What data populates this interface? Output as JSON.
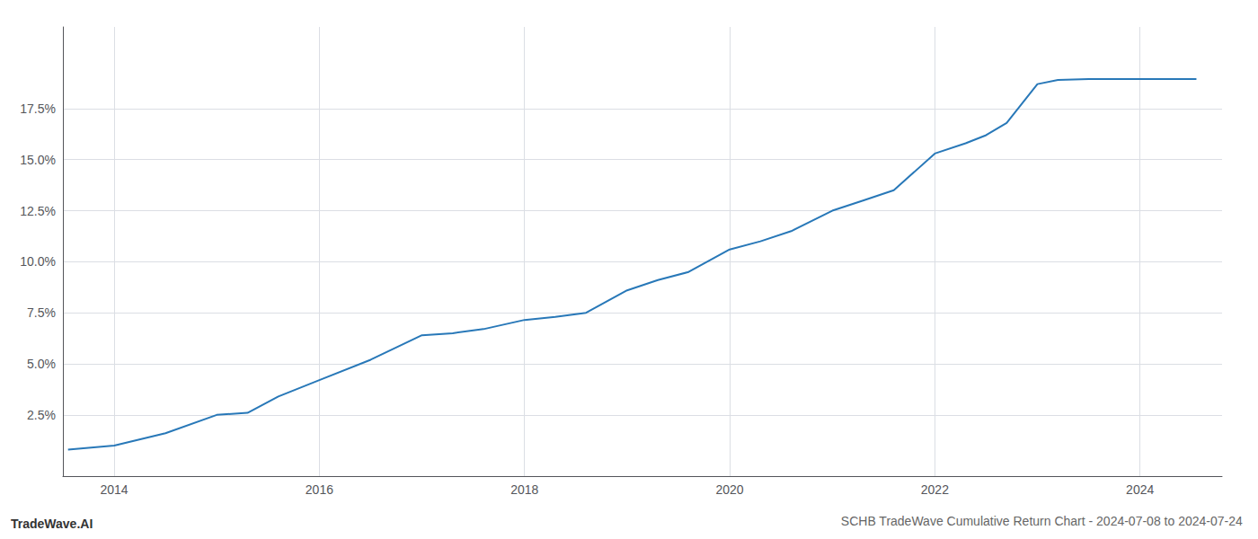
{
  "chart_data": {
    "type": "line",
    "title": "SCHB TradeWave Cumulative Return Chart - 2024-07-08 to 2024-07-24",
    "annotations": [
      "TradeWave.AI"
    ],
    "x": [
      2013.55,
      2014.0,
      2014.5,
      2015.0,
      2015.3,
      2015.6,
      2016.0,
      2016.5,
      2017.0,
      2017.3,
      2017.6,
      2018.0,
      2018.3,
      2018.6,
      2019.0,
      2019.3,
      2019.6,
      2020.0,
      2020.3,
      2020.6,
      2021.0,
      2021.3,
      2021.6,
      2022.0,
      2022.3,
      2022.5,
      2022.7,
      2023.0,
      2023.2,
      2023.5,
      2023.8,
      2024.0,
      2024.3,
      2024.55
    ],
    "values": [
      0.8,
      1.0,
      1.6,
      2.5,
      2.6,
      3.4,
      4.2,
      5.2,
      6.4,
      6.5,
      6.7,
      7.15,
      7.3,
      7.5,
      8.6,
      9.1,
      9.5,
      10.6,
      11.0,
      11.5,
      12.5,
      13.0,
      13.5,
      15.3,
      15.8,
      16.2,
      16.8,
      18.7,
      18.9,
      18.95,
      18.95,
      18.95,
      18.95,
      18.95
    ],
    "color": "#2878b8",
    "xlim": [
      2013.5,
      2024.8
    ],
    "xticks": [
      2014,
      2016,
      2018,
      2020,
      2022,
      2024
    ],
    "ylim": [
      -0.5,
      21.5
    ],
    "yticks": [
      {
        "value": 2.5,
        "label": "2.5%"
      },
      {
        "value": 5.0,
        "label": "5.0%"
      },
      {
        "value": 7.5,
        "label": "7.5%"
      },
      {
        "value": 10.0,
        "label": "10.0%"
      },
      {
        "value": 12.5,
        "label": "12.5%"
      },
      {
        "value": 15.0,
        "label": "15.0%"
      },
      {
        "value": 17.5,
        "label": "17.5%"
      }
    ],
    "grid": true
  }
}
